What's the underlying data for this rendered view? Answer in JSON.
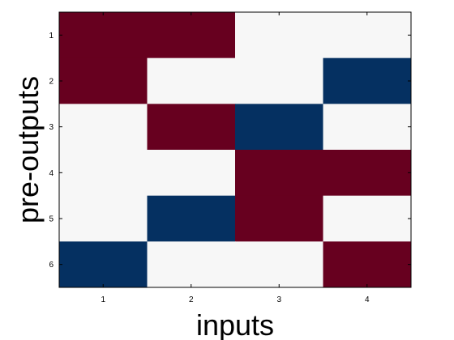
{
  "chart_data": {
    "type": "heatmap",
    "title": "",
    "xlabel": "inputs",
    "ylabel": "pre-outputs",
    "x_categories": [
      "1",
      "2",
      "3",
      "4"
    ],
    "y_categories": [
      "1",
      "2",
      "3",
      "4",
      "5",
      "6"
    ],
    "grid": false,
    "values": [
      [
        1,
        1,
        0,
        0
      ],
      [
        1,
        0,
        0,
        -1
      ],
      [
        0,
        1,
        -1,
        0
      ],
      [
        0,
        0,
        1,
        1
      ],
      [
        0,
        -1,
        1,
        0
      ],
      [
        -1,
        0,
        0,
        1
      ]
    ],
    "colors": {
      "positive": "#67001f",
      "neutral": "#f7f7f7",
      "negative": "#053061"
    }
  }
}
